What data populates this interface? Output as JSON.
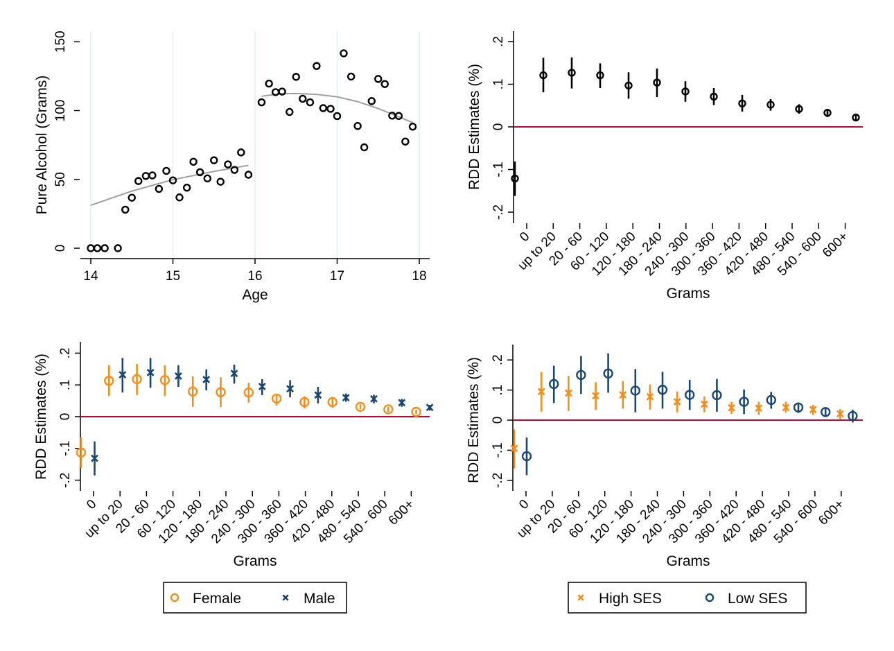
{
  "colors": {
    "black": "#000000",
    "orange": "#f28e1c",
    "navy": "#1a476f",
    "zero_line": "#c10534",
    "fit": "#a0a0a0",
    "grid": "#e4eef2"
  },
  "chart_data": [
    {
      "type": "scatter",
      "xlabel": "Age",
      "ylabel": "Pure Alcohol (Grams)",
      "xlim": [
        14,
        18
      ],
      "ylim": [
        0,
        150
      ],
      "xticks": [
        "14",
        "15",
        "16",
        "17",
        "18"
      ],
      "yticks": [
        "0",
        "50",
        "100",
        "150"
      ],
      "grid": "vertical",
      "points": [
        [
          14.0,
          0
        ],
        [
          14.08,
          0
        ],
        [
          14.17,
          0
        ],
        [
          14.33,
          0
        ],
        [
          14.42,
          28
        ],
        [
          14.5,
          36.7
        ],
        [
          14.58,
          48.8
        ],
        [
          14.67,
          52.5
        ],
        [
          14.75,
          52.9
        ],
        [
          14.83,
          43.1
        ],
        [
          14.92,
          56.2
        ],
        [
          15.0,
          49.3
        ],
        [
          15.08,
          36.9
        ],
        [
          15.17,
          44
        ],
        [
          15.25,
          62.8
        ],
        [
          15.33,
          55.2
        ],
        [
          15.42,
          50.7
        ],
        [
          15.5,
          63.9
        ],
        [
          15.58,
          48.3
        ],
        [
          15.67,
          60.9
        ],
        [
          15.75,
          56.9
        ],
        [
          15.83,
          69.6
        ],
        [
          15.92,
          53.4
        ],
        [
          16.08,
          106
        ],
        [
          16.17,
          119.6
        ],
        [
          16.25,
          113.4
        ],
        [
          16.33,
          113.8
        ],
        [
          16.42,
          99
        ],
        [
          16.5,
          124.5
        ],
        [
          16.58,
          108.6
        ],
        [
          16.67,
          106
        ],
        [
          16.75,
          132.4
        ],
        [
          16.83,
          101.8
        ],
        [
          16.92,
          101.3
        ],
        [
          17.0,
          96
        ],
        [
          17.08,
          141.6
        ],
        [
          17.17,
          124.7
        ],
        [
          17.25,
          88.8
        ],
        [
          17.33,
          73.3
        ],
        [
          17.42,
          106.9
        ],
        [
          17.5,
          123
        ],
        [
          17.58,
          119.3
        ],
        [
          17.67,
          96.3
        ],
        [
          17.75,
          96.1
        ],
        [
          17.83,
          77.5
        ],
        [
          17.92,
          88.3
        ]
      ],
      "fit_left": [
        [
          14.0,
          31.2
        ],
        [
          14.5,
          41.5
        ],
        [
          15.0,
          49.8
        ],
        [
          15.5,
          55.8
        ],
        [
          15.92,
          60.2
        ]
      ],
      "fit_right": [
        [
          16.08,
          110.4
        ],
        [
          16.3,
          112.2
        ],
        [
          16.5,
          112.4
        ],
        [
          16.75,
          111.8
        ],
        [
          17.0,
          110
        ],
        [
          17.25,
          106.5
        ],
        [
          17.5,
          101.5
        ],
        [
          17.75,
          95.5
        ],
        [
          17.92,
          91.3
        ]
      ]
    },
    {
      "type": "errorbar",
      "xlabel": "Grams",
      "ylabel": "RDD Estimates (%)",
      "ylim": [
        -0.2,
        0.2
      ],
      "yticks": [
        "-.2",
        "-.1",
        "0",
        ".1",
        ".2"
      ],
      "categories": [
        "0",
        "up to 20",
        "20 - 60",
        "60 - 120",
        "120 - 180",
        "180 - 240",
        "240 - 300",
        "300 - 360",
        "360 - 420",
        "420 - 480",
        "480 - 540",
        "540 - 600",
        "600+"
      ],
      "series": [
        {
          "marker": "circle",
          "color": "black",
          "values": [
            -0.121,
            0.121,
            0.127,
            0.121,
            0.097,
            0.104,
            0.083,
            0.071,
            0.055,
            0.052,
            0.042,
            0.033,
            0.022
          ],
          "ci_low": [
            -0.162,
            0.081,
            0.09,
            0.091,
            0.066,
            0.07,
            0.059,
            0.051,
            0.036,
            0.038,
            0.031,
            0.023,
            0.014
          ],
          "ci_high": [
            -0.081,
            0.162,
            0.163,
            0.149,
            0.128,
            0.137,
            0.107,
            0.091,
            0.075,
            0.065,
            0.053,
            0.042,
            0.028
          ]
        }
      ]
    },
    {
      "type": "errorbar",
      "xlabel": "Grams",
      "ylabel": "RDD Estimates (%)",
      "ylim": [
        -0.2,
        0.2
      ],
      "yticks": [
        "-.2",
        "-.1",
        "0",
        ".1",
        ".2"
      ],
      "categories": [
        "0",
        "up to 20",
        "20 - 60",
        "60 - 120",
        "120 - 180",
        "180 - 240",
        "240 - 300",
        "300 - 360",
        "360 - 420",
        "420 - 480",
        "480 - 540",
        "540 - 600",
        "600+"
      ],
      "legend": "bottom",
      "series": [
        {
          "name": "Female",
          "marker": "circle",
          "color": "orange",
          "values": [
            -0.113,
            0.113,
            0.118,
            0.115,
            0.079,
            0.077,
            0.076,
            0.057,
            0.046,
            0.046,
            0.031,
            0.023,
            0.015
          ],
          "ci_low": [
            -0.162,
            0.065,
            0.068,
            0.065,
            0.031,
            0.03,
            0.044,
            0.035,
            0.026,
            0.028,
            0.023,
            0.015,
            0.008
          ],
          "ci_high": [
            -0.065,
            0.162,
            0.166,
            0.162,
            0.127,
            0.124,
            0.107,
            0.071,
            0.064,
            0.062,
            0.039,
            0.031,
            0.022
          ]
        },
        {
          "name": "Male",
          "marker": "x",
          "color": "navy",
          "values": [
            -0.131,
            0.132,
            0.139,
            0.128,
            0.117,
            0.136,
            0.095,
            0.088,
            0.068,
            0.06,
            0.056,
            0.044,
            0.029
          ],
          "ci_low": [
            -0.185,
            0.076,
            0.091,
            0.094,
            0.083,
            0.104,
            0.068,
            0.061,
            0.042,
            0.047,
            0.042,
            0.031,
            0.019
          ],
          "ci_high": [
            -0.078,
            0.185,
            0.185,
            0.162,
            0.149,
            0.164,
            0.118,
            0.115,
            0.094,
            0.073,
            0.069,
            0.056,
            0.037
          ]
        }
      ]
    },
    {
      "type": "errorbar",
      "xlabel": "Grams",
      "ylabel": "RDD Estimates (%)",
      "ylim": [
        -0.2,
        0.2
      ],
      "yticks": [
        "-.2",
        "-.1",
        "0",
        ".1",
        ".2"
      ],
      "categories": [
        "0",
        "up to 20",
        "20 - 60",
        "60 - 120",
        "120 - 180",
        "180 - 240",
        "240 - 300",
        "300 - 360",
        "360 - 420",
        "420 - 480",
        "480 - 540",
        "540 - 600",
        "600+"
      ],
      "legend": "bottom",
      "series": [
        {
          "name": "High SES",
          "marker": "x",
          "color": "orange",
          "values": [
            -0.094,
            0.095,
            0.09,
            0.081,
            0.084,
            0.078,
            0.061,
            0.053,
            0.041,
            0.04,
            0.042,
            0.035,
            0.021
          ],
          "ci_low": [
            -0.161,
            0.028,
            0.03,
            0.034,
            0.038,
            0.035,
            0.025,
            0.026,
            0.021,
            0.017,
            0.025,
            0.017,
            0.003
          ],
          "ci_high": [
            -0.031,
            0.16,
            0.147,
            0.126,
            0.13,
            0.118,
            0.095,
            0.079,
            0.061,
            0.061,
            0.061,
            0.051,
            0.037
          ]
        },
        {
          "name": "Low SES",
          "marker": "circle",
          "color": "navy",
          "values": [
            -0.12,
            0.12,
            0.15,
            0.155,
            0.098,
            0.101,
            0.084,
            0.083,
            0.061,
            0.067,
            0.042,
            0.027,
            0.014
          ],
          "ci_low": [
            -0.183,
            0.057,
            0.087,
            0.091,
            0.026,
            0.038,
            0.034,
            0.028,
            0.02,
            0.038,
            0.024,
            0.013,
            -0.008
          ],
          "ci_high": [
            -0.058,
            0.181,
            0.213,
            0.222,
            0.17,
            0.161,
            0.134,
            0.137,
            0.102,
            0.094,
            0.058,
            0.041,
            0.035
          ]
        }
      ]
    }
  ]
}
